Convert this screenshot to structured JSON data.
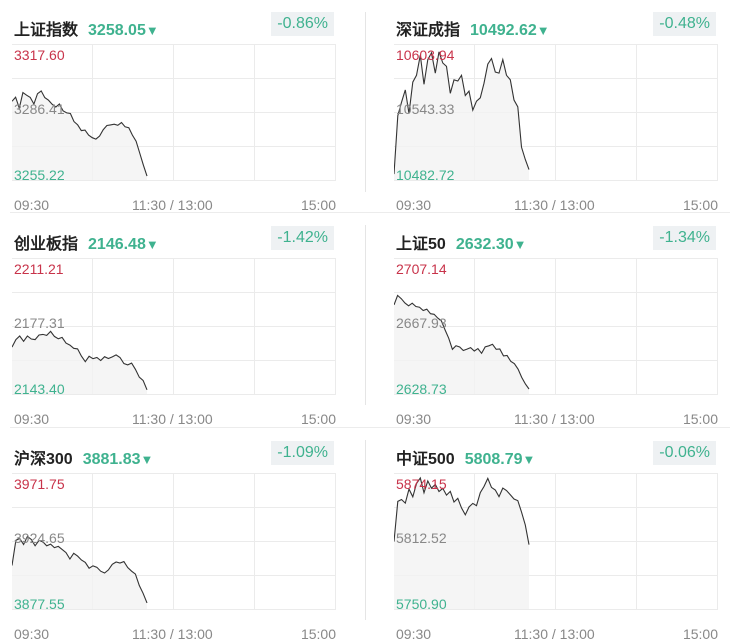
{
  "colors": {
    "up": "#c8334a",
    "down": "#3fb28f",
    "mid": "#888888",
    "line": "#333333"
  },
  "time_axis": {
    "start": "09:30",
    "mid": "11:30 / 13:00",
    "end": "15:00"
  },
  "indices": [
    {
      "name": "上证指数",
      "price": "3258.05",
      "arrow": "▼",
      "change": "-0.86%",
      "max_label": "3317.60",
      "mid_label": "3286.41",
      "min_label": "3255.22",
      "chart_data": {
        "type": "line",
        "ylim": [
          3255.22,
          3317.6
        ],
        "x_range": [
          0,
          240
        ],
        "x_shown": 100,
        "y": [
          3291.3,
          3293.2,
          3288.2,
          3295.3,
          3294.1,
          3293.1,
          3290.1,
          3294.8,
          3296.1,
          3293.0,
          3291.8,
          3290.0,
          3288.7,
          3290.1,
          3286.9,
          3286.0,
          3285.7,
          3282.0,
          3280.5,
          3277.9,
          3278.1,
          3275.8,
          3274.6,
          3274.0,
          3275.4,
          3278.3,
          3280.2,
          3280.5,
          3280.8,
          3280.3,
          3281.6,
          3279.6,
          3279.2,
          3275.8,
          3273.0,
          3267.6,
          3262.0,
          3257.0
        ]
      }
    },
    {
      "name": "深证成指",
      "price": "10492.62",
      "arrow": "▼",
      "change": "-0.48%",
      "max_label": "10603.94",
      "mid_label": "10543.33",
      "min_label": "10482.72",
      "chart_data": {
        "type": "line",
        "ylim": [
          10482.72,
          10603.94
        ],
        "x_range": [
          0,
          240
        ],
        "x_shown": 100,
        "y": [
          10488.0,
          10540.0,
          10552.0,
          10563.0,
          10542.0,
          10570.0,
          10576.0,
          10594.0,
          10568.0,
          10590.0,
          10596.0,
          10578.0,
          10597.0,
          10587.0,
          10584.0,
          10560.0,
          10572.0,
          10571.0,
          10576.0,
          10558.0,
          10562.0,
          10545.0,
          10553.0,
          10556.0,
          10569.0,
          10586.0,
          10591.0,
          10579.0,
          10578.0,
          10590.0,
          10576.0,
          10572.0,
          10554.0,
          10548.0,
          10512.0,
          10501.0,
          10492.0
        ]
      }
    },
    {
      "name": "创业板指",
      "price": "2146.48",
      "arrow": "▼",
      "change": "-1.42%",
      "max_label": "2211.21",
      "mid_label": "2177.31",
      "min_label": "2143.40",
      "chart_data": {
        "type": "line",
        "ylim": [
          2143.4,
          2211.21
        ],
        "x_range": [
          0,
          240
        ],
        "x_shown": 100,
        "y": [
          2166.8,
          2170.5,
          2172.3,
          2169.7,
          2172.3,
          2170.8,
          2170.5,
          2172.8,
          2173.1,
          2172.6,
          2174.6,
          2172.1,
          2170.9,
          2171.6,
          2168.8,
          2167.8,
          2166.2,
          2165.9,
          2162.3,
          2159.5,
          2162.2,
          2161.0,
          2161.6,
          2160.1,
          2162.0,
          2161.1,
          2161.9,
          2162.9,
          2161.6,
          2158.6,
          2157.9,
          2158.8,
          2155.7,
          2151.8,
          2150.2,
          2145.5
        ]
      }
    },
    {
      "name": "上证50",
      "price": "2632.30",
      "arrow": "▼",
      "change": "-1.34%",
      "max_label": "2707.14",
      "mid_label": "2667.93",
      "min_label": "2628.73",
      "chart_data": {
        "type": "line",
        "ylim": [
          2628.73,
          2707.14
        ],
        "x_range": [
          0,
          240
        ],
        "x_shown": 100,
        "y": [
          2680.1,
          2685.6,
          2683.7,
          2681.2,
          2679.6,
          2681.1,
          2679.2,
          2678.8,
          2676.9,
          2677.6,
          2675.0,
          2674.7,
          2672.5,
          2670.9,
          2665.6,
          2660.9,
          2654.5,
          2656.6,
          2655.8,
          2653.8,
          2654.6,
          2655.5,
          2653.5,
          2654.9,
          2652.2,
          2655.9,
          2656.5,
          2657.4,
          2654.5,
          2654.7,
          2650.7,
          2650.9,
          2647.5,
          2646.2,
          2643.0,
          2638.3,
          2634.5,
          2631.6
        ]
      }
    },
    {
      "name": "沪深300",
      "price": "3881.83",
      "arrow": "▼",
      "change": "-1.09%",
      "max_label": "3971.75",
      "mid_label": "3924.65",
      "min_label": "3877.55",
      "chart_data": {
        "type": "line",
        "ylim": [
          3877.55,
          3971.75
        ],
        "x_range": [
          0,
          240
        ],
        "x_shown": 100,
        "y": [
          3907.7,
          3925.2,
          3926.4,
          3922.2,
          3927.8,
          3925.7,
          3921.3,
          3925.1,
          3924.0,
          3921.3,
          3922.5,
          3920.1,
          3920.9,
          3918.8,
          3916.6,
          3912.2,
          3916.1,
          3914.2,
          3911.5,
          3909.8,
          3905.8,
          3907.5,
          3906.4,
          3903.7,
          3902.5,
          3904.6,
          3908.5,
          3910.1,
          3909.4,
          3910.4,
          3906.3,
          3903.7,
          3901.7,
          3893.8,
          3888.4,
          3881.8
        ]
      }
    },
    {
      "name": "中证500",
      "price": "5808.79",
      "arrow": "▼",
      "change": "-0.06%",
      "max_label": "5874.15",
      "mid_label": "5812.52",
      "min_label": "5750.90",
      "chart_data": {
        "type": "line",
        "ylim": [
          5750.9,
          5874.15
        ],
        "x_range": [
          0,
          240
        ],
        "x_shown": 100,
        "y": [
          5812.0,
          5848.4,
          5850.1,
          5846.9,
          5859.6,
          5852.6,
          5864.5,
          5869.6,
          5856.3,
          5867.0,
          5860.4,
          5863.8,
          5857.4,
          5860.2,
          5854.1,
          5857.5,
          5847.9,
          5851.2,
          5842.5,
          5836.3,
          5843.3,
          5846.6,
          5844.5,
          5856.4,
          5861.9,
          5869.3,
          5861.1,
          5858.7,
          5852.7,
          5860.5,
          5858.3,
          5854.4,
          5850.6,
          5849.1,
          5838.8,
          5827.0,
          5809.3
        ]
      }
    }
  ]
}
